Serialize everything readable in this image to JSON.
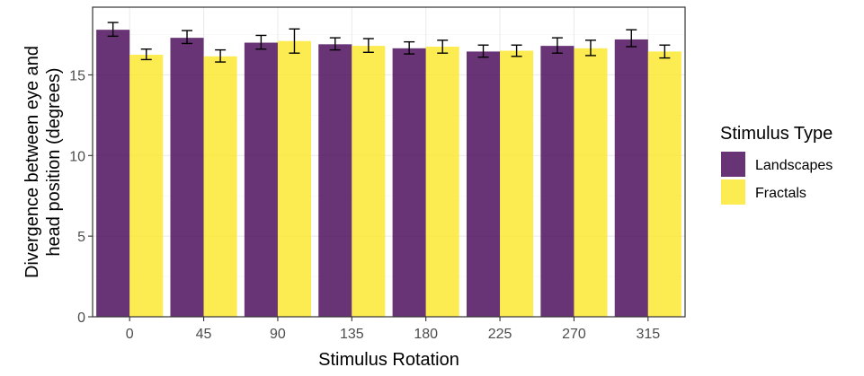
{
  "chart_data": {
    "type": "bar",
    "xlabel": "Stimulus Rotation",
    "ylabel_lines": [
      "Divergence between eye and",
      "head position (degrees)"
    ],
    "categories": [
      "0",
      "45",
      "90",
      "135",
      "180",
      "225",
      "270",
      "315"
    ],
    "ylim": [
      0,
      19.2
    ],
    "yticks": [
      0,
      5,
      10,
      15
    ],
    "grid": true,
    "legend": {
      "title": "Stimulus Type",
      "position": "right"
    },
    "series": [
      {
        "name": "Landscapes",
        "color": "#440154",
        "values": [
          17.8,
          17.3,
          17.0,
          16.9,
          16.65,
          16.45,
          16.8,
          17.2
        ],
        "error_low": [
          17.4,
          16.95,
          16.6,
          16.55,
          16.3,
          16.1,
          16.35,
          16.75
        ],
        "error_high": [
          18.25,
          17.75,
          17.45,
          17.3,
          17.05,
          16.85,
          17.3,
          17.8
        ]
      },
      {
        "name": "Fractals",
        "color": "#FDE725",
        "values": [
          16.25,
          16.15,
          17.1,
          16.8,
          16.75,
          16.5,
          16.65,
          16.45
        ],
        "error_low": [
          15.95,
          15.8,
          16.35,
          16.4,
          16.35,
          16.15,
          16.2,
          16.05
        ],
        "error_high": [
          16.6,
          16.55,
          17.85,
          17.25,
          17.15,
          16.85,
          17.15,
          16.85
        ]
      }
    ]
  }
}
